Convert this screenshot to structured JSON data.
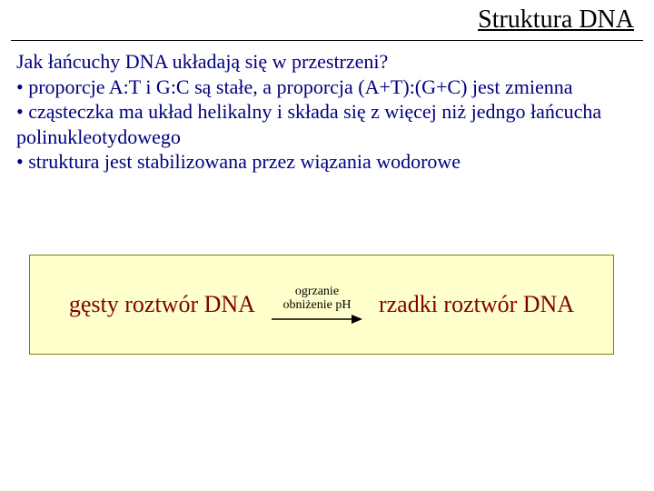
{
  "title": "Struktura DNA",
  "title_fontsize": 28,
  "title_color": "#000000",
  "body_fontsize": 22,
  "body_color": "#000080",
  "question": "Jak łańcuchy DNA układają się w przestrzeni?",
  "bullets": [
    "proporcje A:T i G:C są stałe, a proporcja (A+T):(G+C) jest zmienna",
    "cząsteczka ma układ helikalny i składa się z więcej niż jedngo łańcucha polinukleotydowego",
    "struktura jest stabilizowana przez wiązania wodorowe"
  ],
  "diagram": {
    "background_color": "#ffffcc",
    "border_color": "#808000",
    "text_color": "#800000",
    "text_fontsize": 26,
    "dense_label": "gęsty roztwór DNA",
    "rare_label": "rzadki roztwór DNA",
    "arrow_top_label": "ogrzanie",
    "arrow_bottom_label": "obniżenie pH",
    "arrow_label_fontsize": 14,
    "arrow_label_color": "#000000",
    "arrow_color": "#000000",
    "arrow_width": 100,
    "arrow_stroke": 1.5
  }
}
